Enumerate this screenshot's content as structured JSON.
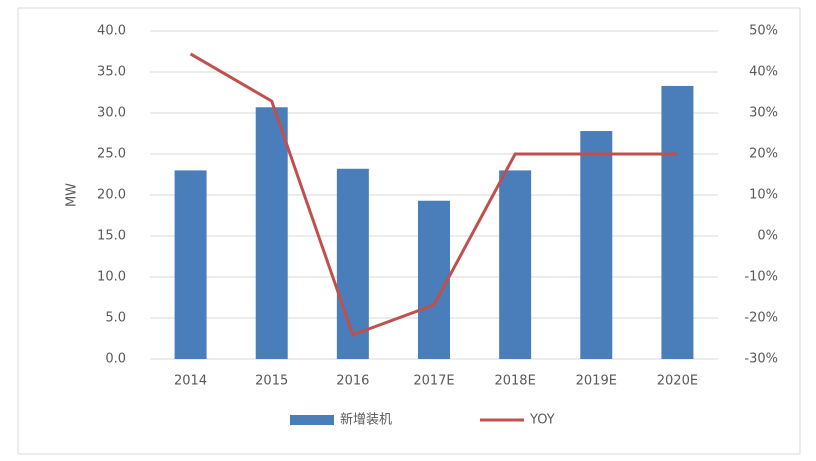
{
  "chart_data": {
    "type": "bar-line",
    "y_label": "MW",
    "categories": [
      "2014",
      "2015",
      "2016",
      "2017E",
      "2018E",
      "2019E",
      "2020E"
    ],
    "series": [
      {
        "name": "新增装机",
        "type": "bar",
        "color": "#4a7ebb",
        "values": [
          23.0,
          30.7,
          23.2,
          19.3,
          23.0,
          27.8,
          33.3
        ]
      },
      {
        "name": "YOY",
        "type": "line",
        "axis": "y2",
        "color": "#c0504d",
        "values": [
          44.4,
          32.9,
          -24.1,
          -16.8,
          20,
          20,
          20
        ]
      }
    ],
    "ylim": [
      0,
      40
    ],
    "yticks": [
      {
        "value": 0,
        "label": "0.0"
      },
      {
        "value": 5,
        "label": "5.0"
      },
      {
        "value": 10,
        "label": "10.0"
      },
      {
        "value": 15,
        "label": "15.0"
      },
      {
        "value": 20,
        "label": "20.0"
      },
      {
        "value": 25,
        "label": "25.0"
      },
      {
        "value": 30,
        "label": "30.0"
      },
      {
        "value": 35,
        "label": "35.0"
      },
      {
        "value": 40,
        "label": "40.0"
      }
    ],
    "y2lim": [
      -30,
      50
    ],
    "y2ticks": [
      {
        "value": -30,
        "label": "-30%"
      },
      {
        "value": -20,
        "label": "-20%"
      },
      {
        "value": -10,
        "label": "-10%"
      },
      {
        "value": 0,
        "label": "0%"
      },
      {
        "value": 10,
        "label": "10%"
      },
      {
        "value": 20,
        "label": "20%"
      },
      {
        "value": 30,
        "label": "30%"
      },
      {
        "value": 40,
        "label": "40%"
      },
      {
        "value": 50,
        "label": "50%"
      }
    ],
    "grid": true,
    "legend": "bottom"
  }
}
